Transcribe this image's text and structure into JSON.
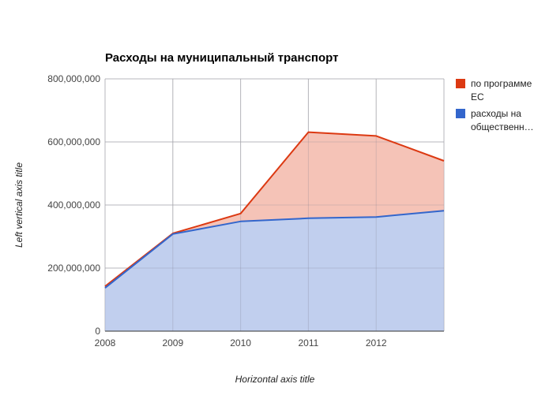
{
  "chart_data": {
    "type": "area",
    "stacked": true,
    "title": "Расходы на муниципальный транспорт",
    "xlabel": "Horizontal axis title",
    "ylabel": "Left vertical axis title",
    "x_ticks": [
      "2008",
      "2009",
      "2010",
      "2011",
      "2012"
    ],
    "x": [
      2008,
      2009,
      2010,
      2011,
      2012,
      2013
    ],
    "xlim": [
      2008,
      2013
    ],
    "ylim": [
      0,
      800000000
    ],
    "y_ticks": [
      {
        "value": 0,
        "label": "0"
      },
      {
        "value": 200000000,
        "label": "200,000,000"
      },
      {
        "value": 400000000,
        "label": "400,000,000"
      },
      {
        "value": 600000000,
        "label": "600,000,000"
      },
      {
        "value": 800000000,
        "label": "800,000,000"
      }
    ],
    "grid": true,
    "legend_position": "right",
    "series": [
      {
        "name": "расходы на общественн…",
        "legend_lines": [
          "расходы на",
          "общественн…"
        ],
        "color": "#3366cc",
        "fill": "#c1cfee",
        "values": [
          137000000,
          308000000,
          348000000,
          358000000,
          362000000,
          382000000
        ]
      },
      {
        "name": "по программе ЕС",
        "legend_lines": [
          "по программе",
          "ЕС"
        ],
        "color": "#dc3912",
        "fill": "#f5c3b7",
        "values": [
          5000000,
          2000000,
          25000000,
          273000000,
          257000000,
          158000000
        ]
      }
    ]
  }
}
